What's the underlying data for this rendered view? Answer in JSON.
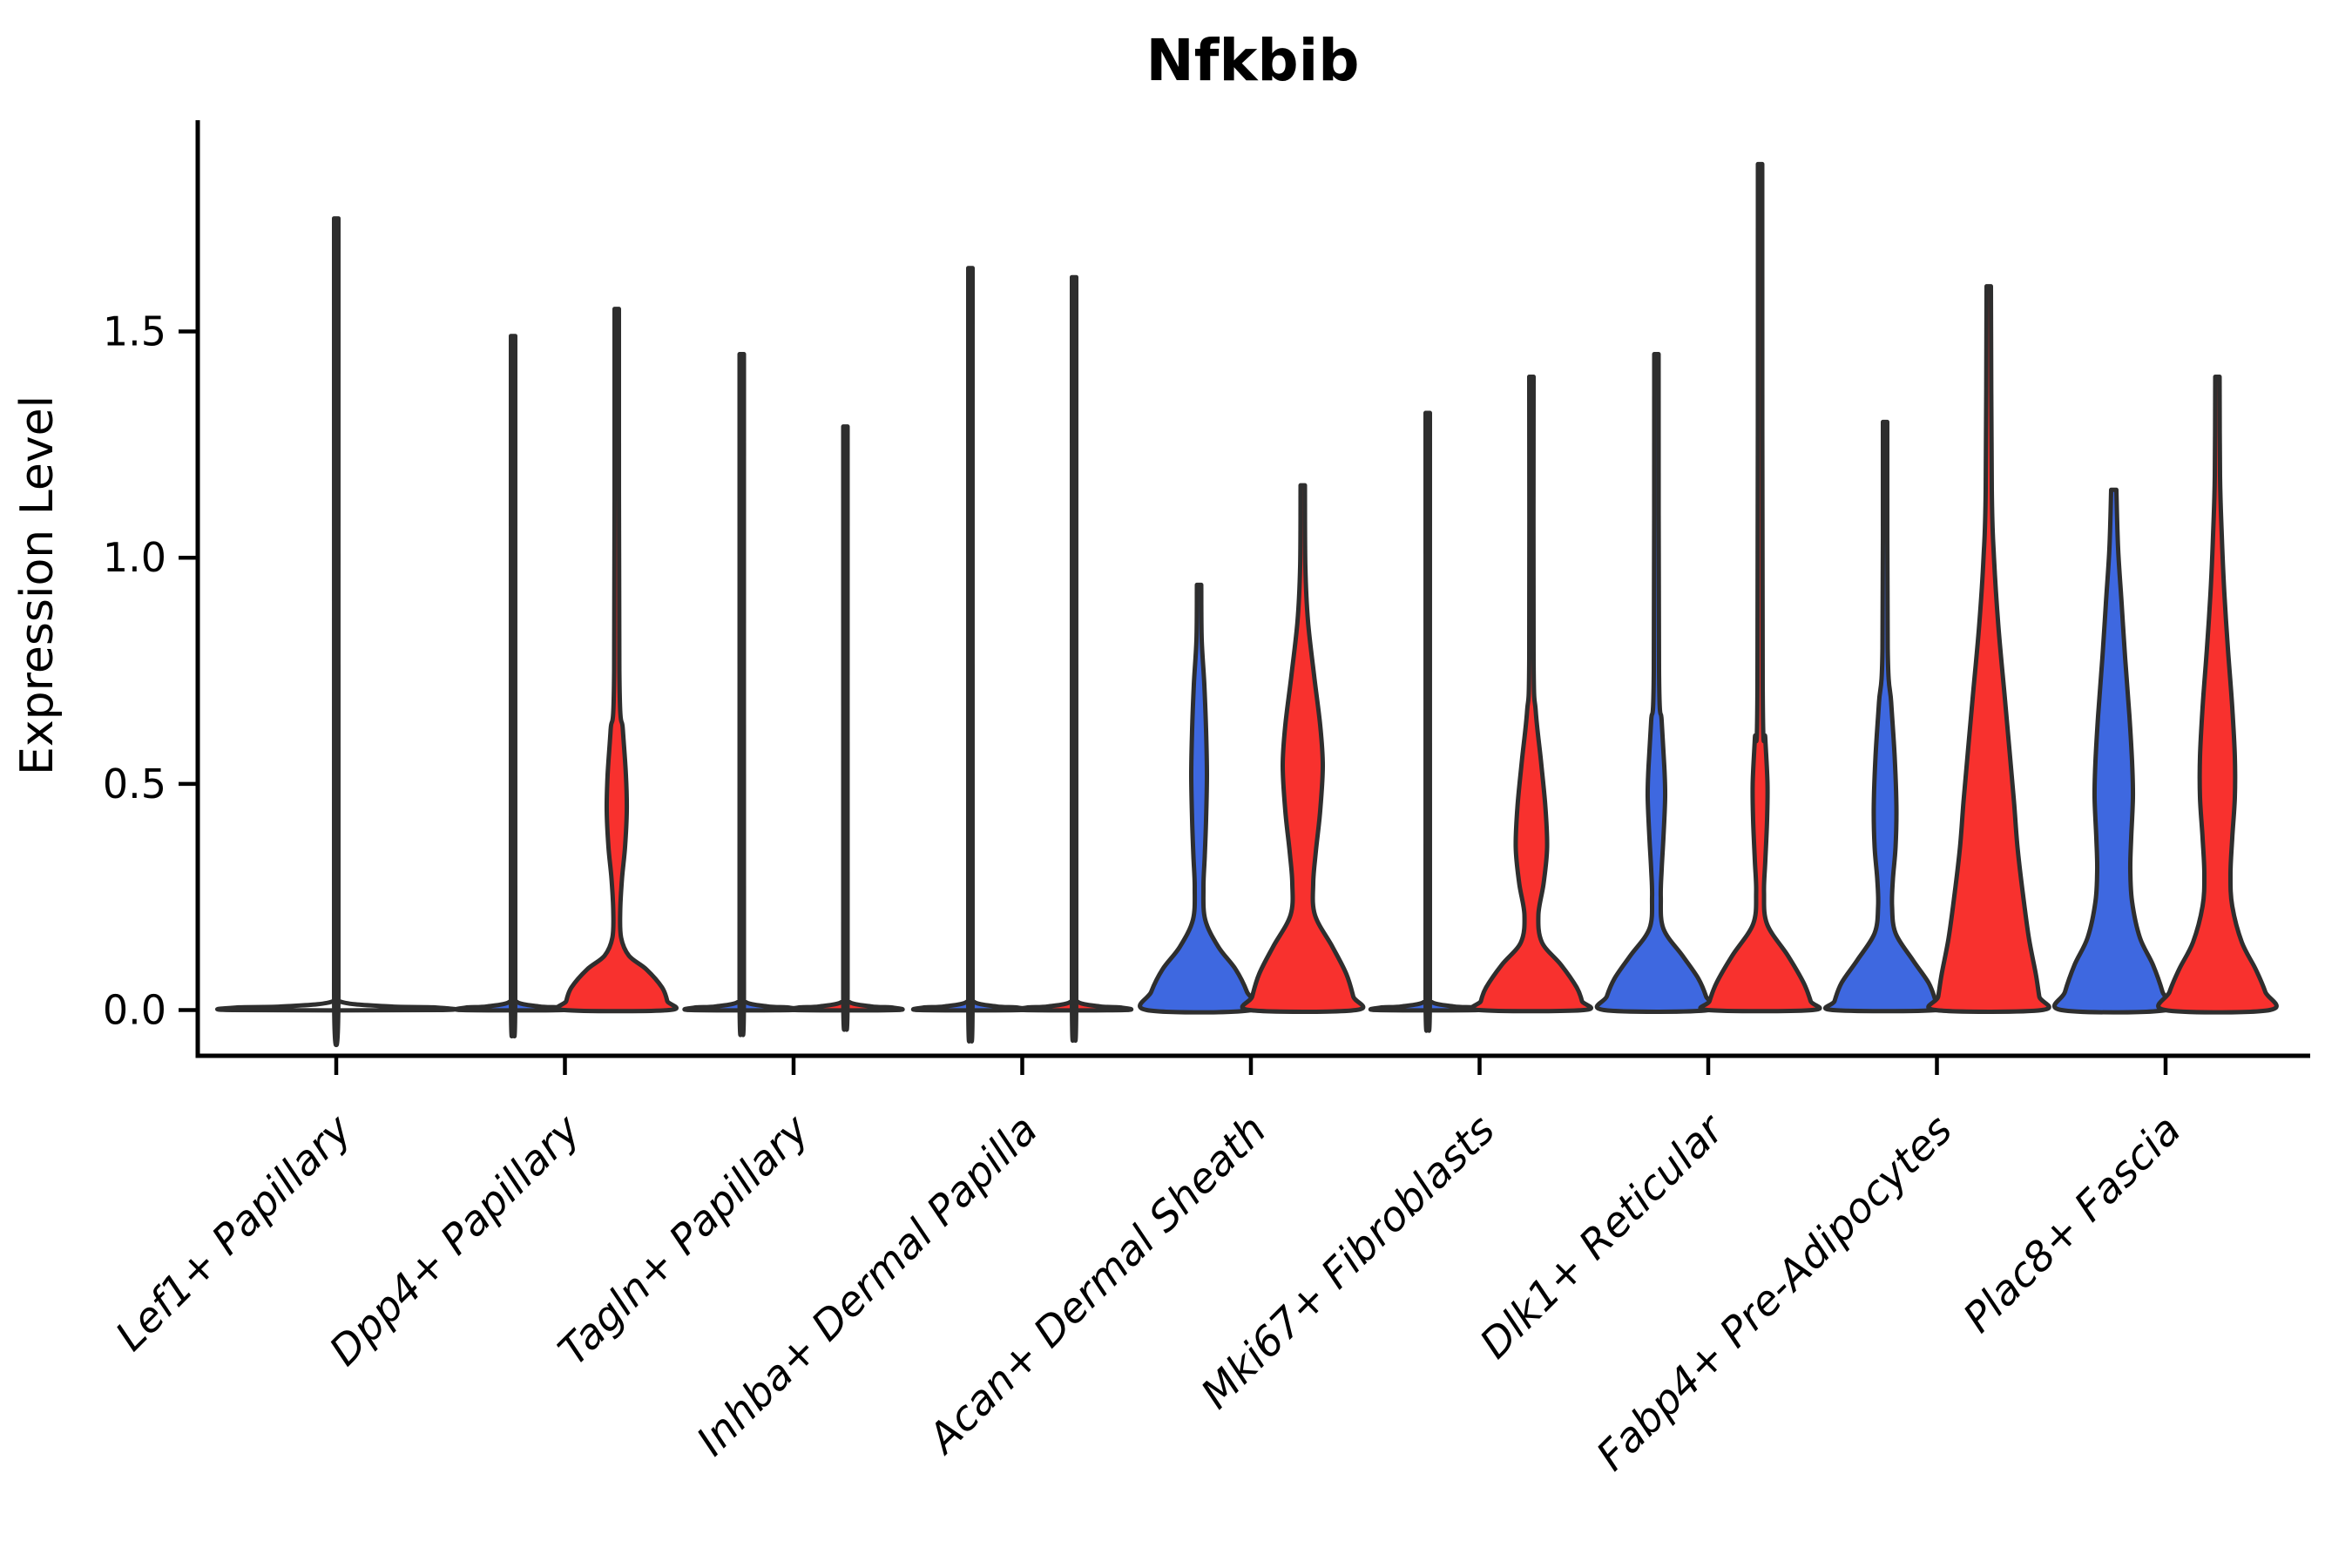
{
  "figure": {
    "title": "Nfkbib",
    "ylabel": "Expression Level"
  },
  "chart_data": {
    "type": "violin",
    "title": "Nfkbib",
    "xlabel": "",
    "ylabel": "Expression Level",
    "yticks": [
      0.0,
      0.5,
      1.0,
      1.5
    ],
    "ytick_labels": [
      "0.0",
      "0.5",
      "1.0",
      "1.5"
    ],
    "ylim": [
      -0.06,
      1.97
    ],
    "grid": false,
    "legend_position": "none",
    "split_violin": true,
    "colors": {
      "group_a_fill": "#3e68e0",
      "group_b_fill": "#f8312e",
      "outline": "#2e2e2e",
      "axis": "#000000",
      "text": "#000000"
    },
    "profile_units": "[expression_level_value, half_width_px]",
    "categories": [
      {
        "label": "Lef1+ Papillary",
        "violins": [
          {
            "group": "single",
            "max": 1.75,
            "profile": [
              [
                1.75,
                2.5
              ],
              [
                0.06,
                2.5
              ],
              [
                0.02,
                3
              ],
              [
                0.008,
                60
              ],
              [
                0.006,
                112
              ],
              [
                0,
                119
              ]
            ]
          }
        ]
      },
      {
        "label": "Dpp4+ Papillary",
        "violins": [
          {
            "group": "a",
            "max": 1.49,
            "profile": [
              [
                1.49,
                2.5
              ],
              [
                0.06,
                2.5
              ],
              [
                0.02,
                3
              ],
              [
                0.008,
                30
              ],
              [
                0.006,
                52
              ],
              [
                0,
                58
              ]
            ]
          },
          {
            "group": "b",
            "max": 1.55,
            "profile": [
              [
                1.55,
                2.5
              ],
              [
                0.75,
                3
              ],
              [
                0.62,
                7
              ],
              [
                0.52,
                10.5
              ],
              [
                0.44,
                11.5
              ],
              [
                0.36,
                9.5
              ],
              [
                0.29,
                6
              ],
              [
                0.22,
                4
              ],
              [
                0.16,
                5
              ],
              [
                0.12,
                14
              ],
              [
                0.09,
                34
              ],
              [
                0.05,
                52
              ],
              [
                0.02,
                58
              ],
              [
                0,
                60
              ]
            ]
          }
        ]
      },
      {
        "label": "Tagln+ Papillary",
        "violins": [
          {
            "group": "a",
            "max": 1.45,
            "profile": [
              [
                1.45,
                2.5
              ],
              [
                0.06,
                2.5
              ],
              [
                0.02,
                3
              ],
              [
                0.008,
                30
              ],
              [
                0.006,
                52
              ],
              [
                0,
                58
              ]
            ]
          },
          {
            "group": "b",
            "max": 1.29,
            "profile": [
              [
                1.29,
                2.5
              ],
              [
                0.06,
                2.5
              ],
              [
                0.02,
                3
              ],
              [
                0.008,
                30
              ],
              [
                0.006,
                52
              ],
              [
                0,
                58
              ]
            ]
          }
        ]
      },
      {
        "label": "Inhba+ Dermal Papilla",
        "violins": [
          {
            "group": "a",
            "max": 1.64,
            "profile": [
              [
                1.64,
                2.5
              ],
              [
                0.06,
                2.5
              ],
              [
                0.02,
                3
              ],
              [
                0.008,
                30
              ],
              [
                0.006,
                52
              ],
              [
                0,
                58
              ]
            ]
          },
          {
            "group": "b",
            "max": 1.62,
            "profile": [
              [
                1.62,
                2.5
              ],
              [
                0.06,
                2.5
              ],
              [
                0.02,
                3
              ],
              [
                0.008,
                30
              ],
              [
                0.006,
                52
              ],
              [
                0,
                58
              ]
            ]
          }
        ]
      },
      {
        "label": "Acan+ Dermal Sheath",
        "violins": [
          {
            "group": "a",
            "max": 0.94,
            "profile": [
              [
                0.94,
                2.5
              ],
              [
                0.82,
                3
              ],
              [
                0.72,
                6
              ],
              [
                0.62,
                8
              ],
              [
                0.52,
                9
              ],
              [
                0.42,
                8
              ],
              [
                0.34,
                6.5
              ],
              [
                0.27,
                5
              ],
              [
                0.2,
                7
              ],
              [
                0.14,
                22
              ],
              [
                0.09,
                42
              ],
              [
                0.04,
                55
              ],
              [
                0,
                60
              ]
            ]
          },
          {
            "group": "b",
            "max": 1.16,
            "profile": [
              [
                1.16,
                2.5
              ],
              [
                0.98,
                3
              ],
              [
                0.86,
                6
              ],
              [
                0.74,
                13
              ],
              [
                0.63,
                20
              ],
              [
                0.54,
                23
              ],
              [
                0.44,
                20
              ],
              [
                0.35,
                15
              ],
              [
                0.28,
                12
              ],
              [
                0.21,
                14
              ],
              [
                0.14,
                34
              ],
              [
                0.08,
                50
              ],
              [
                0.03,
                58
              ],
              [
                0,
                61
              ]
            ]
          }
        ]
      },
      {
        "label": "Mki67+ Fibroblasts",
        "violins": [
          {
            "group": "a",
            "max": 1.32,
            "profile": [
              [
                1.32,
                2.5
              ],
              [
                0.06,
                2.5
              ],
              [
                0.02,
                3
              ],
              [
                0.008,
                30
              ],
              [
                0.006,
                52
              ],
              [
                0,
                58
              ]
            ]
          },
          {
            "group": "b",
            "max": 1.4,
            "profile": [
              [
                1.4,
                2.5
              ],
              [
                0.78,
                2.5
              ],
              [
                0.66,
                5
              ],
              [
                0.55,
                11
              ],
              [
                0.45,
                16
              ],
              [
                0.36,
                18
              ],
              [
                0.28,
                14
              ],
              [
                0.21,
                8
              ],
              [
                0.15,
                12
              ],
              [
                0.1,
                34
              ],
              [
                0.05,
                52
              ],
              [
                0.02,
                58
              ],
              [
                0,
                60
              ]
            ]
          }
        ]
      },
      {
        "label": "Dlk1+ Reticular",
        "violins": [
          {
            "group": "a",
            "max": 1.45,
            "profile": [
              [
                1.45,
                2.5
              ],
              [
                0.75,
                3
              ],
              [
                0.64,
                6
              ],
              [
                0.54,
                9
              ],
              [
                0.47,
                10
              ],
              [
                0.38,
                8
              ],
              [
                0.31,
                6
              ],
              [
                0.25,
                5
              ],
              [
                0.18,
                8
              ],
              [
                0.12,
                30
              ],
              [
                0.07,
                48
              ],
              [
                0.03,
                57
              ],
              [
                0,
                60
              ]
            ]
          },
          {
            "group": "b",
            "max": 1.87,
            "profile": [
              [
                1.87,
                2.5
              ],
              [
                0.72,
                3
              ],
              [
                0.6,
                6
              ],
              [
                0.5,
                8.5
              ],
              [
                0.42,
                8
              ],
              [
                0.33,
                6
              ],
              [
                0.26,
                4.5
              ],
              [
                0.19,
                8
              ],
              [
                0.12,
                32
              ],
              [
                0.06,
                50
              ],
              [
                0.02,
                58
              ],
              [
                0,
                60
              ]
            ]
          }
        ]
      },
      {
        "label": "Fabp4+ Pre-Adipocytes",
        "violins": [
          {
            "group": "a",
            "max": 1.3,
            "profile": [
              [
                1.3,
                2.5
              ],
              [
                0.8,
                3
              ],
              [
                0.68,
                7
              ],
              [
                0.56,
                11
              ],
              [
                0.45,
                13
              ],
              [
                0.36,
                12
              ],
              [
                0.29,
                9
              ],
              [
                0.23,
                8
              ],
              [
                0.17,
                12
              ],
              [
                0.11,
                32
              ],
              [
                0.06,
                50
              ],
              [
                0.02,
                58
              ],
              [
                0,
                60
              ]
            ]
          },
          {
            "group": "b",
            "max": 1.6,
            "profile": [
              [
                1.6,
                2.5
              ],
              [
                1.15,
                3.5
              ],
              [
                1.0,
                6
              ],
              [
                0.85,
                11
              ],
              [
                0.7,
                18
              ],
              [
                0.57,
                24
              ],
              [
                0.46,
                29
              ],
              [
                0.36,
                33
              ],
              [
                0.26,
                39
              ],
              [
                0.16,
                46
              ],
              [
                0.08,
                54
              ],
              [
                0.03,
                58
              ],
              [
                0,
                61
              ]
            ]
          }
        ]
      },
      {
        "label": "Plac8+ Fascia",
        "violins": [
          {
            "group": "a",
            "max": 1.15,
            "profile": [
              [
                1.15,
                3
              ],
              [
                1.02,
                5
              ],
              [
                0.9,
                9
              ],
              [
                0.78,
                13
              ],
              [
                0.65,
                18
              ],
              [
                0.55,
                21
              ],
              [
                0.47,
                22
              ],
              [
                0.38,
                20
              ],
              [
                0.31,
                19
              ],
              [
                0.24,
                21
              ],
              [
                0.16,
                30
              ],
              [
                0.1,
                45
              ],
              [
                0.04,
                56
              ],
              [
                0,
                60
              ]
            ]
          },
          {
            "group": "b",
            "max": 1.4,
            "profile": [
              [
                1.4,
                2.5
              ],
              [
                1.18,
                3
              ],
              [
                1.05,
                5
              ],
              [
                0.92,
                8
              ],
              [
                0.8,
                12
              ],
              [
                0.67,
                17
              ],
              [
                0.56,
                20
              ],
              [
                0.47,
                20
              ],
              [
                0.38,
                17
              ],
              [
                0.3,
                15
              ],
              [
                0.23,
                17
              ],
              [
                0.15,
                28
              ],
              [
                0.09,
                44
              ],
              [
                0.04,
                55
              ],
              [
                0,
                60
              ]
            ]
          }
        ]
      }
    ]
  }
}
